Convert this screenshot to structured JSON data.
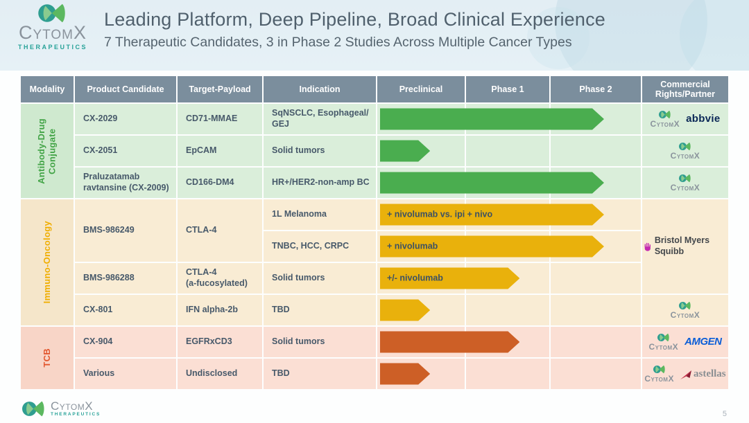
{
  "slide": {
    "title": "Leading Platform, Deep Pipeline, Broad Clinical Experience",
    "subtitle": "7 Therapeutic Candidates, 3 in Phase 2 Studies Across Multiple Cancer Types",
    "page_number": "5"
  },
  "logo": {
    "word": "CytomX",
    "sub": "THERAPEUTICS"
  },
  "colors": {
    "header_bg": "#7b8e9d",
    "adc_green": "#43a447",
    "io_amber": "#f0ae00",
    "tcb_orange": "#e2572f",
    "arrow_green": "#4aad4f",
    "arrow_amber": "#e9b10c",
    "arrow_orange": "#cd5f26",
    "teal": "#28a298"
  },
  "pipeline": {
    "columns": [
      "Modality",
      "Product Candidate",
      "Target-Payload",
      "Indication",
      "Preclinical",
      "Phase 1",
      "Phase 2",
      "Commercial\nRights/Partner"
    ],
    "groups": [
      {
        "label": "Antibody-Drug\nConjugate"
      },
      {
        "label": "Immuno-Oncology"
      },
      {
        "label": "TCB"
      }
    ],
    "rows": [
      {
        "product": "CX-2029",
        "target": "CD71-MMAE",
        "indication": "SqNSCLC, Esophageal/\nGEJ",
        "arrow": {
          "label": "",
          "end_pct": 85,
          "color": "#4aad4f"
        }
      },
      {
        "product": "CX-2051",
        "target": "EpCAM",
        "indication": "Solid tumors",
        "arrow": {
          "label": "",
          "end_pct": 19,
          "color": "#4aad4f"
        }
      },
      {
        "product": "Praluzatamab\nravtansine (CX-2009)",
        "target": "CD166-DM4",
        "indication": "HR+/HER2-non-amp BC",
        "arrow": {
          "label": "",
          "end_pct": 85,
          "color": "#4aad4f"
        }
      },
      {
        "product": "BMS-986249",
        "target": "CTLA-4",
        "indication": "1L Melanoma",
        "arrow": {
          "label": "+ nivolumab vs. ipi + nivo",
          "end_pct": 85,
          "color": "#e9b10c"
        }
      },
      {
        "indication": "TNBC, HCC, CRPC",
        "arrow": {
          "label": "+ nivolumab",
          "end_pct": 85,
          "color": "#e9b10c"
        }
      },
      {
        "product": "BMS-986288",
        "target": "CTLA-4\n(a-fucosylated)",
        "indication": "Solid tumors",
        "arrow": {
          "label": "+/- nivolumab",
          "end_pct": 53,
          "color": "#e9b10c"
        }
      },
      {
        "product": "CX-801",
        "target": "IFN alpha-2b",
        "indication": "TBD",
        "arrow": {
          "label": "",
          "end_pct": 19,
          "color": "#e9b10c"
        }
      },
      {
        "product": "CX-904",
        "target": "EGFRxCD3",
        "indication": "Solid tumors",
        "arrow": {
          "label": "",
          "end_pct": 53,
          "color": "#cd5f26"
        }
      },
      {
        "product": "Various",
        "target": "Undisclosed",
        "indication": "TBD",
        "arrow": {
          "label": "",
          "end_pct": 19,
          "color": "#cd5f26"
        }
      }
    ]
  },
  "partners": {
    "cytomx": "CytomX",
    "abbvie": "abbvie",
    "bms": "Bristol Myers Squibb",
    "amgen": "AMGEN",
    "astellas": "astellas"
  }
}
